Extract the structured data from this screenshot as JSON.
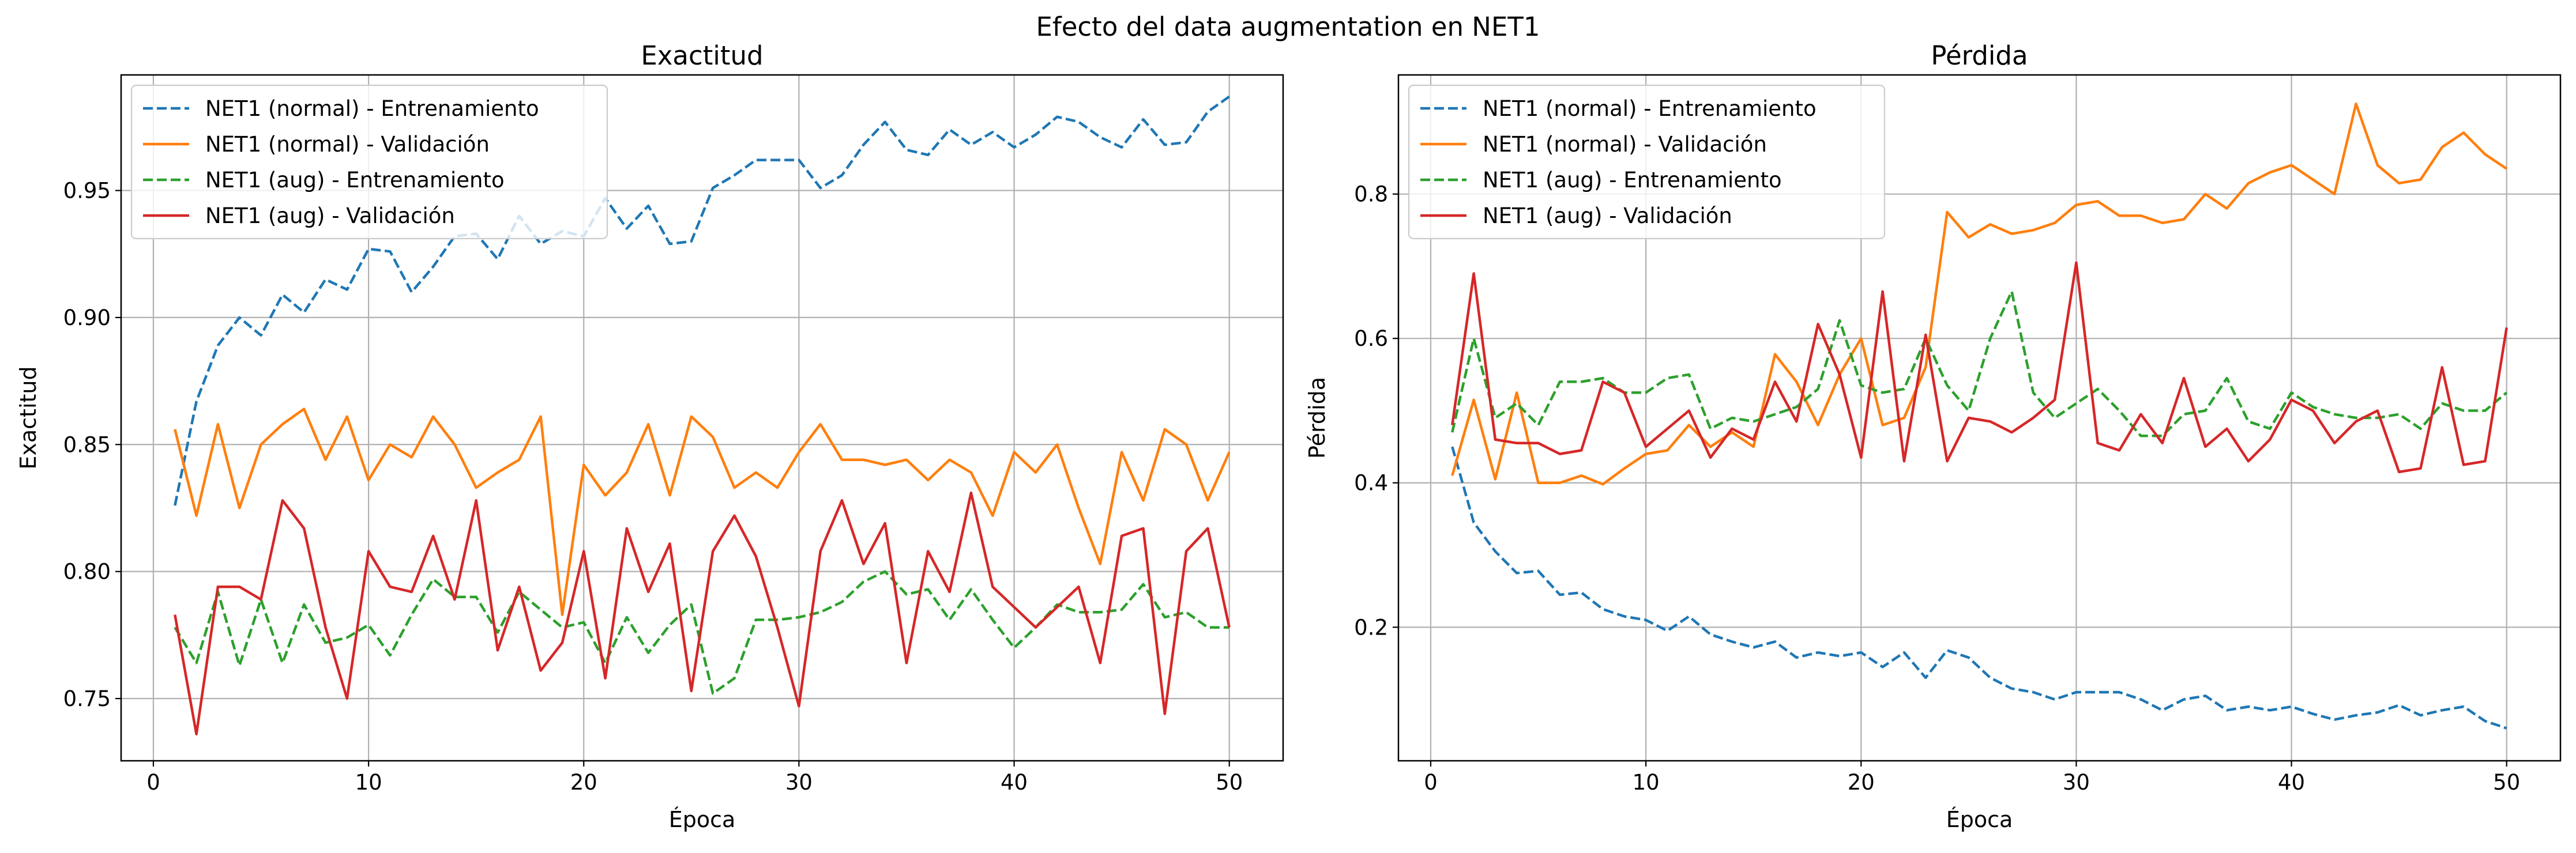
{
  "figure": {
    "suptitle": "Efecto del data augmentation en NET1"
  },
  "chart_data": [
    {
      "type": "line",
      "title": "Exactitud",
      "xlabel": "Época",
      "ylabel": "Exactitud",
      "xlim": [
        -1.5,
        52.5
      ],
      "ylim": [
        0.7255,
        0.9955
      ],
      "xticks": [
        0,
        10,
        20,
        30,
        40,
        50
      ],
      "yticks": [
        0.75,
        0.8,
        0.85,
        0.9,
        0.95
      ],
      "ytick_labels": [
        "0.75",
        "0.80",
        "0.85",
        "0.90",
        "0.95"
      ],
      "grid": true,
      "legend": "upper left",
      "x": [
        1,
        2,
        3,
        4,
        5,
        6,
        7,
        8,
        9,
        10,
        11,
        12,
        13,
        14,
        15,
        16,
        17,
        18,
        19,
        20,
        21,
        22,
        23,
        24,
        25,
        26,
        27,
        28,
        29,
        30,
        31,
        32,
        33,
        34,
        35,
        36,
        37,
        38,
        39,
        40,
        41,
        42,
        43,
        44,
        45,
        46,
        47,
        48,
        49,
        50
      ],
      "series": [
        {
          "name": "NET1 (normal) - Entrenamiento",
          "color": "#1f77b4",
          "dash": "dashed",
          "values": [
            0.826,
            0.867,
            0.889,
            0.9,
            0.893,
            0.909,
            0.902,
            0.915,
            0.911,
            0.927,
            0.926,
            0.91,
            0.92,
            0.932,
            0.933,
            0.923,
            0.94,
            0.929,
            0.934,
            0.932,
            0.947,
            0.935,
            0.944,
            0.929,
            0.93,
            0.951,
            0.956,
            0.962,
            0.962,
            0.962,
            0.951,
            0.956,
            0.968,
            0.977,
            0.966,
            0.964,
            0.974,
            0.968,
            0.973,
            0.967,
            0.972,
            0.979,
            0.977,
            0.971,
            0.967,
            0.978,
            0.968,
            0.969,
            0.981,
            0.987
          ]
        },
        {
          "name": "NET1 (normal) - Validación",
          "color": "#ff7f0e",
          "dash": "solid",
          "values": [
            0.856,
            0.822,
            0.858,
            0.825,
            0.85,
            0.858,
            0.864,
            0.844,
            0.861,
            0.836,
            0.85,
            0.845,
            0.861,
            0.85,
            0.833,
            0.839,
            0.844,
            0.861,
            0.783,
            0.842,
            0.83,
            0.839,
            0.858,
            0.83,
            0.861,
            0.853,
            0.833,
            0.839,
            0.833,
            0.847,
            0.858,
            0.844,
            0.844,
            0.842,
            0.844,
            0.836,
            0.844,
            0.839,
            0.822,
            0.847,
            0.839,
            0.85,
            0.825,
            0.803,
            0.847,
            0.828,
            0.856,
            0.85,
            0.828,
            0.847
          ]
        },
        {
          "name": "NET1 (aug) - Entrenamiento",
          "color": "#2ca02c",
          "dash": "dashed",
          "values": [
            0.778,
            0.764,
            0.792,
            0.763,
            0.789,
            0.764,
            0.787,
            0.772,
            0.774,
            0.779,
            0.767,
            0.783,
            0.797,
            0.79,
            0.79,
            0.776,
            0.792,
            0.785,
            0.778,
            0.78,
            0.764,
            0.782,
            0.768,
            0.779,
            0.787,
            0.752,
            0.758,
            0.781,
            0.781,
            0.782,
            0.784,
            0.788,
            0.796,
            0.8,
            0.791,
            0.793,
            0.781,
            0.793,
            0.781,
            0.77,
            0.778,
            0.787,
            0.784,
            0.784,
            0.785,
            0.795,
            0.782,
            0.784,
            0.778,
            0.778
          ]
        },
        {
          "name": "NET1 (aug) - Validación",
          "color": "#d62728",
          "dash": "solid",
          "values": [
            0.783,
            0.736,
            0.794,
            0.794,
            0.789,
            0.828,
            0.817,
            0.778,
            0.75,
            0.808,
            0.794,
            0.792,
            0.814,
            0.789,
            0.828,
            0.769,
            0.794,
            0.761,
            0.772,
            0.808,
            0.758,
            0.817,
            0.792,
            0.811,
            0.753,
            0.808,
            0.822,
            0.806,
            0.778,
            0.747,
            0.808,
            0.828,
            0.803,
            0.819,
            0.764,
            0.808,
            0.792,
            0.831,
            0.794,
            0.786,
            0.778,
            0.786,
            0.794,
            0.764,
            0.814,
            0.817,
            0.744,
            0.808,
            0.817,
            0.778
          ]
        }
      ]
    },
    {
      "type": "line",
      "title": "Pérdida",
      "xlabel": "Época",
      "ylabel": "Pérdida",
      "xlim": [
        -1.5,
        52.5
      ],
      "ylim": [
        0.015,
        0.965
      ],
      "xticks": [
        0,
        10,
        20,
        30,
        40,
        50
      ],
      "yticks": [
        0.2,
        0.4,
        0.6,
        0.8
      ],
      "ytick_labels": [
        "0.2",
        "0.4",
        "0.6",
        "0.8"
      ],
      "grid": true,
      "legend": "upper left",
      "x": [
        1,
        2,
        3,
        4,
        5,
        6,
        7,
        8,
        9,
        10,
        11,
        12,
        13,
        14,
        15,
        16,
        17,
        18,
        19,
        20,
        21,
        22,
        23,
        24,
        25,
        26,
        27,
        28,
        29,
        30,
        31,
        32,
        33,
        34,
        35,
        36,
        37,
        38,
        39,
        40,
        41,
        42,
        43,
        44,
        45,
        46,
        47,
        48,
        49,
        50
      ],
      "series": [
        {
          "name": "NET1 (normal) - Entrenamiento",
          "color": "#1f77b4",
          "dash": "dashed",
          "values": [
            0.45,
            0.345,
            0.305,
            0.275,
            0.278,
            0.245,
            0.248,
            0.225,
            0.215,
            0.21,
            0.195,
            0.215,
            0.19,
            0.18,
            0.172,
            0.18,
            0.158,
            0.165,
            0.16,
            0.165,
            0.145,
            0.165,
            0.13,
            0.168,
            0.158,
            0.13,
            0.115,
            0.11,
            0.1,
            0.11,
            0.11,
            0.11,
            0.1,
            0.085,
            0.1,
            0.105,
            0.085,
            0.09,
            0.085,
            0.09,
            0.08,
            0.072,
            0.078,
            0.082,
            0.092,
            0.078,
            0.085,
            0.09,
            0.07,
            0.06
          ]
        },
        {
          "name": "NET1 (normal) - Validación",
          "color": "#ff7f0e",
          "dash": "solid",
          "values": [
            0.41,
            0.515,
            0.405,
            0.525,
            0.4,
            0.4,
            0.41,
            0.398,
            0.42,
            0.44,
            0.445,
            0.48,
            0.45,
            0.47,
            0.45,
            0.578,
            0.54,
            0.48,
            0.55,
            0.6,
            0.48,
            0.49,
            0.56,
            0.775,
            0.74,
            0.758,
            0.745,
            0.75,
            0.76,
            0.785,
            0.79,
            0.77,
            0.77,
            0.76,
            0.765,
            0.8,
            0.78,
            0.815,
            0.83,
            0.84,
            0.82,
            0.8,
            0.925,
            0.84,
            0.815,
            0.82,
            0.865,
            0.885,
            0.855,
            0.835
          ]
        },
        {
          "name": "NET1 (aug) - Entrenamiento",
          "color": "#2ca02c",
          "dash": "dashed",
          "values": [
            0.47,
            0.6,
            0.49,
            0.51,
            0.48,
            0.54,
            0.54,
            0.545,
            0.525,
            0.525,
            0.545,
            0.55,
            0.475,
            0.49,
            0.485,
            0.495,
            0.505,
            0.53,
            0.625,
            0.535,
            0.525,
            0.53,
            0.6,
            0.535,
            0.5,
            0.6,
            0.665,
            0.525,
            0.49,
            0.51,
            0.53,
            0.5,
            0.465,
            0.465,
            0.495,
            0.5,
            0.545,
            0.485,
            0.475,
            0.525,
            0.505,
            0.495,
            0.49,
            0.49,
            0.495,
            0.475,
            0.51,
            0.5,
            0.5,
            0.525
          ]
        },
        {
          "name": "NET1 (aug) - Validación",
          "color": "#d62728",
          "dash": "solid",
          "values": [
            0.48,
            0.69,
            0.46,
            0.455,
            0.455,
            0.44,
            0.445,
            0.54,
            0.525,
            0.45,
            0.475,
            0.5,
            0.435,
            0.475,
            0.46,
            0.54,
            0.485,
            0.62,
            0.55,
            0.435,
            0.665,
            0.43,
            0.605,
            0.43,
            0.49,
            0.485,
            0.47,
            0.49,
            0.515,
            0.705,
            0.455,
            0.445,
            0.495,
            0.455,
            0.545,
            0.45,
            0.475,
            0.43,
            0.46,
            0.515,
            0.5,
            0.455,
            0.485,
            0.5,
            0.415,
            0.42,
            0.56,
            0.425,
            0.43,
            0.615
          ]
        }
      ]
    }
  ]
}
